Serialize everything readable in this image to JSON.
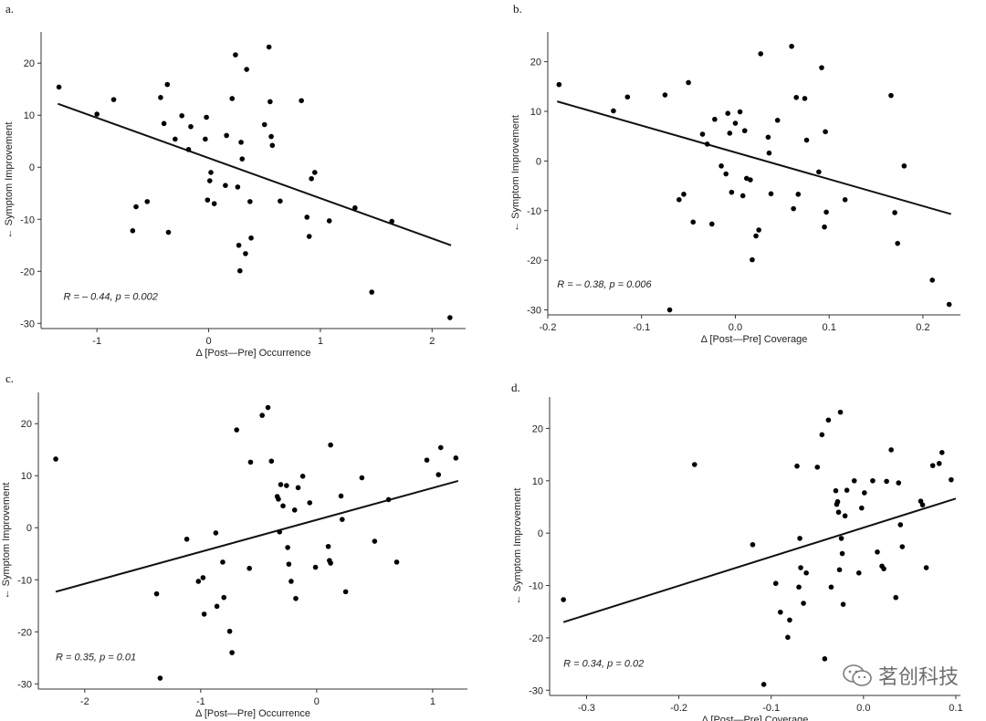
{
  "watermark": {
    "text": "茗创科技"
  },
  "chart_data": [
    {
      "panel_label": "a.",
      "type": "scatter",
      "xlabel": "Δ [Post—Pre] Occurrence",
      "ylabel": "← Symptom Improvement",
      "xlim": [
        -1.5,
        2.3
      ],
      "ylim": [
        -31,
        26
      ],
      "xticks": [
        -1,
        0,
        1,
        2
      ],
      "yticks": [
        -30,
        -20,
        -10,
        0,
        10,
        20
      ],
      "xtick_labels": [
        "-1",
        "0",
        "1",
        "2"
      ],
      "ytick_labels": [
        "-30",
        "-20",
        "-10",
        "0",
        "10",
        "20"
      ],
      "annotation": {
        "r": "R = – 0.44,",
        "p": "p = 0.002",
        "x": -1.3,
        "y": -25.5
      },
      "fit_line": {
        "x": [
          -1.35,
          2.17
        ],
        "y": [
          12.2,
          -15.0
        ]
      },
      "points": [
        [
          -1.34,
          15.4
        ],
        [
          -1.0,
          10.2
        ],
        [
          -0.85,
          13.0
        ],
        [
          -0.68,
          -12.2
        ],
        [
          -0.65,
          -7.6
        ],
        [
          -0.55,
          -6.6
        ],
        [
          -0.43,
          13.4
        ],
        [
          -0.4,
          8.4
        ],
        [
          -0.37,
          15.9
        ],
        [
          -0.36,
          -12.5
        ],
        [
          -0.3,
          5.4
        ],
        [
          -0.24,
          9.9
        ],
        [
          -0.18,
          3.4
        ],
        [
          -0.16,
          7.8
        ],
        [
          -0.03,
          5.4
        ],
        [
          -0.02,
          9.6
        ],
        [
          -0.01,
          -6.3
        ],
        [
          0.01,
          -2.6
        ],
        [
          0.02,
          -1.0
        ],
        [
          0.05,
          -7.0
        ],
        [
          0.15,
          -3.5
        ],
        [
          0.16,
          6.1
        ],
        [
          0.21,
          13.2
        ],
        [
          0.24,
          21.6
        ],
        [
          0.26,
          -3.8
        ],
        [
          0.27,
          -15.0
        ],
        [
          0.28,
          -19.9
        ],
        [
          0.29,
          4.8
        ],
        [
          0.3,
          1.6
        ],
        [
          0.33,
          -16.6
        ],
        [
          0.34,
          18.8
        ],
        [
          0.37,
          -6.6
        ],
        [
          0.38,
          -13.6
        ],
        [
          0.5,
          8.2
        ],
        [
          0.54,
          23.1
        ],
        [
          0.55,
          12.6
        ],
        [
          0.56,
          5.9
        ],
        [
          0.57,
          4.2
        ],
        [
          0.64,
          -6.5
        ],
        [
          0.83,
          12.8
        ],
        [
          0.88,
          -9.6
        ],
        [
          0.9,
          -13.3
        ],
        [
          0.92,
          -2.2
        ],
        [
          0.95,
          -1.0
        ],
        [
          1.08,
          -10.3
        ],
        [
          1.31,
          -7.8
        ],
        [
          1.46,
          -24.0
        ],
        [
          1.64,
          -10.4
        ],
        [
          2.16,
          -28.9
        ]
      ]
    },
    {
      "panel_label": "b.",
      "type": "scatter",
      "xlabel": "Δ [Post—Pre] Coverage",
      "ylabel": "← Symptom Improvement",
      "xlim": [
        -0.2,
        0.24
      ],
      "ylim": [
        -31,
        26
      ],
      "xticks": [
        -0.2,
        -0.1,
        0.0,
        0.1,
        0.2
      ],
      "yticks": [
        -30,
        -20,
        -10,
        0,
        10,
        20
      ],
      "xtick_labels": [
        "-0.2",
        "-0.1",
        "0.0",
        "0.1",
        "0.2"
      ],
      "ytick_labels": [
        "-30",
        "-20",
        "-10",
        "0",
        "10",
        "20"
      ],
      "annotation": {
        "r": "R = – 0.38,",
        "p": "p = 0.006",
        "x": -0.19,
        "y": -25.5
      },
      "fit_line": {
        "x": [
          -0.19,
          0.23
        ],
        "y": [
          12.0,
          -10.7
        ]
      },
      "points": [
        [
          -0.188,
          15.4
        ],
        [
          -0.13,
          10.1
        ],
        [
          -0.115,
          12.9
        ],
        [
          -0.075,
          13.3
        ],
        [
          -0.07,
          -30.0
        ],
        [
          -0.06,
          -7.8
        ],
        [
          -0.055,
          -6.7
        ],
        [
          -0.05,
          15.8
        ],
        [
          -0.045,
          -12.3
        ],
        [
          -0.035,
          5.4
        ],
        [
          -0.03,
          3.4
        ],
        [
          -0.025,
          -12.7
        ],
        [
          -0.022,
          8.4
        ],
        [
          -0.015,
          -1.0
        ],
        [
          -0.01,
          -2.6
        ],
        [
          -0.008,
          9.6
        ],
        [
          -0.006,
          5.6
        ],
        [
          -0.004,
          -6.3
        ],
        [
          0.0,
          7.6
        ],
        [
          0.005,
          9.9
        ],
        [
          0.008,
          -7.0
        ],
        [
          0.01,
          6.1
        ],
        [
          0.012,
          -3.5
        ],
        [
          0.016,
          -3.8
        ],
        [
          0.018,
          -19.9
        ],
        [
          0.022,
          -15.1
        ],
        [
          0.025,
          -13.9
        ],
        [
          0.027,
          21.6
        ],
        [
          0.035,
          4.8
        ],
        [
          0.036,
          1.6
        ],
        [
          0.038,
          -6.6
        ],
        [
          0.045,
          8.2
        ],
        [
          0.06,
          23.1
        ],
        [
          0.062,
          -9.6
        ],
        [
          0.065,
          12.8
        ],
        [
          0.067,
          -6.7
        ],
        [
          0.074,
          12.6
        ],
        [
          0.076,
          4.2
        ],
        [
          0.089,
          -2.2
        ],
        [
          0.092,
          18.8
        ],
        [
          0.095,
          -13.3
        ],
        [
          0.096,
          5.9
        ],
        [
          0.097,
          -10.3
        ],
        [
          0.117,
          -7.8
        ],
        [
          0.166,
          13.2
        ],
        [
          0.17,
          -10.4
        ],
        [
          0.173,
          -16.6
        ],
        [
          0.18,
          -1.0
        ],
        [
          0.21,
          -24.0
        ],
        [
          0.228,
          -28.9
        ]
      ]
    },
    {
      "panel_label": "c.",
      "type": "scatter",
      "xlabel": "Δ [Post—Pre] Occurrence",
      "ylabel": "← Symptom Improvement",
      "xlim": [
        -2.4,
        1.3
      ],
      "ylim": [
        -31,
        26
      ],
      "xticks": [
        -2,
        -1,
        0,
        1
      ],
      "yticks": [
        -30,
        -20,
        -10,
        0,
        10,
        20
      ],
      "xtick_labels": [
        "-2",
        "-1",
        "0",
        "1"
      ],
      "ytick_labels": [
        "-30",
        "-20",
        "-10",
        "0",
        "10",
        "20"
      ],
      "annotation": {
        "r": "R = 0.35,",
        "p": "p = 0.01",
        "x": -2.25,
        "y": -25.5
      },
      "fit_line": {
        "x": [
          -2.25,
          1.22
        ],
        "y": [
          -12.3,
          9.0
        ]
      },
      "points": [
        [
          -2.25,
          13.2
        ],
        [
          -1.38,
          -12.7
        ],
        [
          -1.35,
          -28.9
        ],
        [
          -1.12,
          -2.2
        ],
        [
          -1.02,
          -10.3
        ],
        [
          -0.98,
          -9.6
        ],
        [
          -0.97,
          -16.6
        ],
        [
          -0.87,
          -1.0
        ],
        [
          -0.86,
          -15.1
        ],
        [
          -0.81,
          -6.6
        ],
        [
          -0.8,
          -13.4
        ],
        [
          -0.75,
          -19.9
        ],
        [
          -0.73,
          -24.0
        ],
        [
          -0.69,
          18.8
        ],
        [
          -0.58,
          -7.8
        ],
        [
          -0.57,
          12.6
        ],
        [
          -0.47,
          21.6
        ],
        [
          -0.42,
          23.1
        ],
        [
          -0.39,
          12.8
        ],
        [
          -0.34,
          6.0
        ],
        [
          -0.33,
          5.5
        ],
        [
          -0.32,
          -0.8
        ],
        [
          -0.31,
          8.3
        ],
        [
          -0.29,
          4.2
        ],
        [
          -0.26,
          8.1
        ],
        [
          -0.25,
          -3.8
        ],
        [
          -0.24,
          -7.0
        ],
        [
          -0.22,
          -10.3
        ],
        [
          -0.19,
          3.4
        ],
        [
          -0.18,
          -13.6
        ],
        [
          -0.16,
          7.7
        ],
        [
          -0.12,
          9.9
        ],
        [
          -0.06,
          4.8
        ],
        [
          -0.01,
          -7.6
        ],
        [
          0.1,
          -3.6
        ],
        [
          0.11,
          -6.3
        ],
        [
          0.12,
          -6.8
        ],
        [
          0.12,
          15.9
        ],
        [
          0.21,
          6.1
        ],
        [
          0.22,
          1.6
        ],
        [
          0.25,
          -12.3
        ],
        [
          0.39,
          9.6
        ],
        [
          0.5,
          -2.6
        ],
        [
          0.62,
          5.4
        ],
        [
          0.69,
          -6.6
        ],
        [
          0.95,
          13.0
        ],
        [
          1.05,
          10.2
        ],
        [
          1.07,
          15.4
        ],
        [
          1.2,
          13.4
        ]
      ]
    },
    {
      "panel_label": "d.",
      "type": "scatter",
      "xlabel": "Δ [Post—Pre] Coverage",
      "ylabel": "← Symptom Improvement",
      "xlim": [
        -0.34,
        0.105
      ],
      "ylim": [
        -31,
        26
      ],
      "xticks": [
        -0.3,
        -0.2,
        -0.1,
        0.0,
        0.1
      ],
      "yticks": [
        -30,
        -20,
        -10,
        0,
        10,
        20
      ],
      "xtick_labels": [
        "-0.3",
        "-0.2",
        "-0.1",
        "0.0",
        "0.1"
      ],
      "ytick_labels": [
        "-30",
        "-20",
        "-10",
        "0",
        "10",
        "20"
      ],
      "annotation": {
        "r": "R = 0.34,",
        "p": "p = 0.02",
        "x": -0.325,
        "y": -25.5
      },
      "fit_line": {
        "x": [
          -0.325,
          0.1
        ],
        "y": [
          -17.0,
          6.6
        ]
      },
      "points": [
        [
          -0.325,
          -12.7
        ],
        [
          -0.183,
          13.1
        ],
        [
          -0.12,
          -2.2
        ],
        [
          -0.108,
          -28.9
        ],
        [
          -0.095,
          -9.6
        ],
        [
          -0.09,
          -15.1
        ],
        [
          -0.082,
          -19.9
        ],
        [
          -0.08,
          -16.6
        ],
        [
          -0.072,
          12.8
        ],
        [
          -0.07,
          -10.3
        ],
        [
          -0.069,
          -1.0
        ],
        [
          -0.068,
          -6.6
        ],
        [
          -0.065,
          -13.4
        ],
        [
          -0.062,
          -7.6
        ],
        [
          -0.05,
          12.6
        ],
        [
          -0.045,
          18.8
        ],
        [
          -0.042,
          -24.0
        ],
        [
          -0.038,
          21.6
        ],
        [
          -0.035,
          -10.3
        ],
        [
          -0.03,
          8.1
        ],
        [
          -0.029,
          5.5
        ],
        [
          -0.028,
          6.0
        ],
        [
          -0.027,
          4.0
        ],
        [
          -0.026,
          -7.0
        ],
        [
          -0.025,
          23.1
        ],
        [
          -0.024,
          -1.0
        ],
        [
          -0.023,
          -3.9
        ],
        [
          -0.022,
          -13.6
        ],
        [
          -0.02,
          3.3
        ],
        [
          -0.018,
          8.2
        ],
        [
          -0.01,
          10.0
        ],
        [
          -0.005,
          -7.6
        ],
        [
          -0.002,
          4.8
        ],
        [
          0.001,
          7.7
        ],
        [
          0.01,
          10.0
        ],
        [
          0.015,
          -3.6
        ],
        [
          0.02,
          -6.3
        ],
        [
          0.022,
          -6.8
        ],
        [
          0.025,
          9.9
        ],
        [
          0.03,
          15.9
        ],
        [
          0.035,
          -12.3
        ],
        [
          0.038,
          9.6
        ],
        [
          0.04,
          1.6
        ],
        [
          0.042,
          -2.6
        ],
        [
          0.062,
          6.1
        ],
        [
          0.064,
          5.4
        ],
        [
          0.068,
          -6.6
        ],
        [
          0.075,
          12.9
        ],
        [
          0.082,
          13.3
        ],
        [
          0.085,
          15.4
        ],
        [
          0.095,
          10.2
        ]
      ]
    }
  ]
}
